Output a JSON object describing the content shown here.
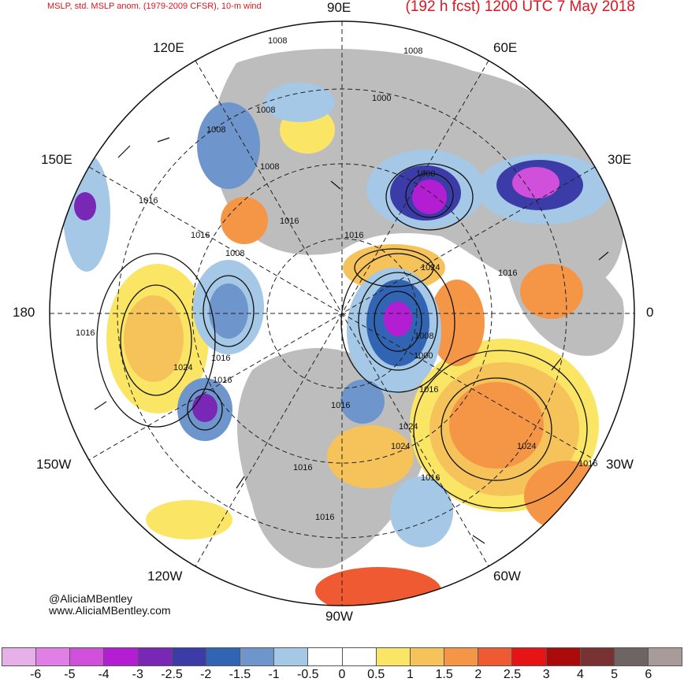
{
  "header": {
    "product": "MSLP, std. MSLP anom. (1979-2009 CFSR), 10-m wind",
    "forecast": "(192 h fcst) 1200 UTC 7 May 2018"
  },
  "longitude_labels": {
    "e90": "90E",
    "e120": "120E",
    "e60": "60E",
    "e150": "150E",
    "e30": "30E",
    "lon180": "180",
    "lon0": "0",
    "w150": "150W",
    "w30": "30W",
    "w120": "120W",
    "w60": "60W",
    "w90": "90W"
  },
  "isobar_labels": [
    "1008",
    "1008",
    "1000",
    "1008",
    "1008",
    "1000",
    "1016",
    "1016",
    "1024",
    "1016",
    "1008",
    "1016",
    "1016",
    "1008",
    "1016",
    "1008",
    "1000",
    "1016",
    "1024",
    "1016",
    "1016",
    "1024",
    "1016",
    "1024",
    "1024",
    "1016",
    "1016",
    "1016",
    "1016"
  ],
  "credit": {
    "handle": "@AliciaMBentley",
    "site": "www.AliciaMBentley.com"
  },
  "colorbar": {
    "colors": [
      "#e8b0e8",
      "#e080e6",
      "#d050dc",
      "#b41ed2",
      "#7828b4",
      "#3c3ca8",
      "#3264b4",
      "#6e96cc",
      "#a5c8e6",
      "#ffffff",
      "#ffffff",
      "#fae664",
      "#f5c35a",
      "#f59646",
      "#f05a32",
      "#e61414",
      "#aa0a0a",
      "#783232",
      "#6e6464",
      "#aa9b9b"
    ],
    "ticks": [
      "-6",
      "-5",
      "-4",
      "-3",
      "-2.5",
      "-2",
      "-1.5",
      "-1",
      "-0.5",
      "0",
      "0.5",
      "1",
      "1.5",
      "2",
      "2.5",
      "3",
      "4",
      "5",
      "6"
    ]
  },
  "colors": {
    "land": "#bdbdbd",
    "ocean": "#ffffff",
    "title_red": "#e0141e"
  }
}
